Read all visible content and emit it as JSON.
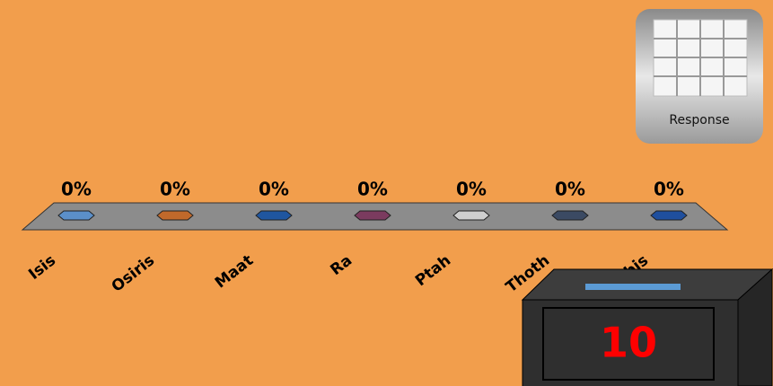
{
  "chart_data": {
    "type": "bar",
    "categories": [
      "Isis",
      "Osiris",
      "Maat",
      "Ra",
      "Ptah",
      "Thoth",
      "Anubis"
    ],
    "values": [
      0,
      0,
      0,
      0,
      0,
      0,
      0
    ],
    "value_labels": [
      "0%",
      "0%",
      "0%",
      "0%",
      "0%",
      "0%",
      "0%"
    ],
    "colors": [
      "#5b8fc9",
      "#c0692b",
      "#1f56a0",
      "#7b3b5f",
      "#cfcfcf",
      "#3b4a63",
      "#1f4f9e"
    ]
  },
  "response_button": {
    "label": "Response"
  },
  "countdown": "10"
}
